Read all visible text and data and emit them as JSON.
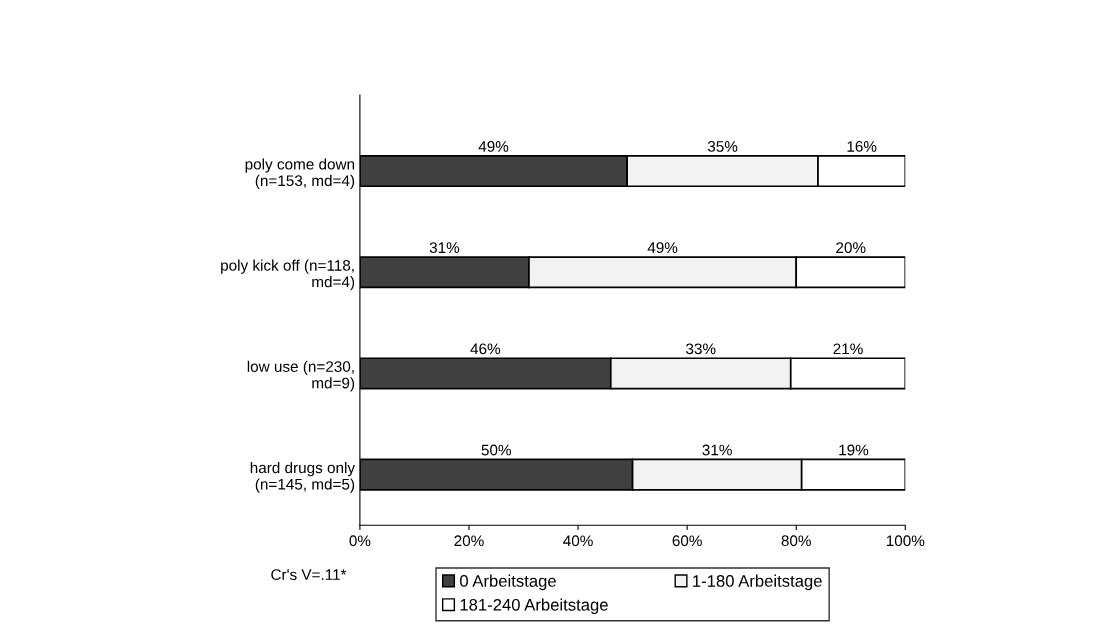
{
  "chart_data": {
    "type": "bar",
    "orientation": "horizontal",
    "stacked": true,
    "categories": [
      "poly come down\n(n=153, md=4)",
      "poly kick off (n=118,\nmd=4)",
      "low use (n=230,\nmd=9)",
      "hard drugs only\n(n=145, md=5)"
    ],
    "series": [
      {
        "name": "0 Arbeitstage",
        "color": "#404040",
        "values": [
          49,
          31,
          46,
          50
        ],
        "value_labels": [
          "49%",
          "31%",
          "46%",
          "50%"
        ]
      },
      {
        "name": "1-180 Arbeitstage",
        "color": "#f2f2f2",
        "values": [
          35,
          49,
          33,
          31
        ],
        "value_labels": [
          "35%",
          "49%",
          "33%",
          "31%"
        ]
      },
      {
        "name": "181-240 Arbeitstage",
        "color": "#ffffff",
        "values": [
          16,
          20,
          21,
          19
        ],
        "value_labels": [
          "16%",
          "20%",
          "21%",
          "19%"
        ]
      }
    ],
    "xlim": [
      0,
      100
    ],
    "xticks": [
      {
        "value": 0,
        "label": "0%"
      },
      {
        "value": 20,
        "label": "20%"
      },
      {
        "value": 40,
        "label": "40%"
      },
      {
        "value": 60,
        "label": "60%"
      },
      {
        "value": 80,
        "label": "80%"
      },
      {
        "value": 100,
        "label": "100%"
      }
    ],
    "grid": false,
    "legend": "bottom",
    "annotations": [
      "Cr's V=.11*"
    ]
  }
}
